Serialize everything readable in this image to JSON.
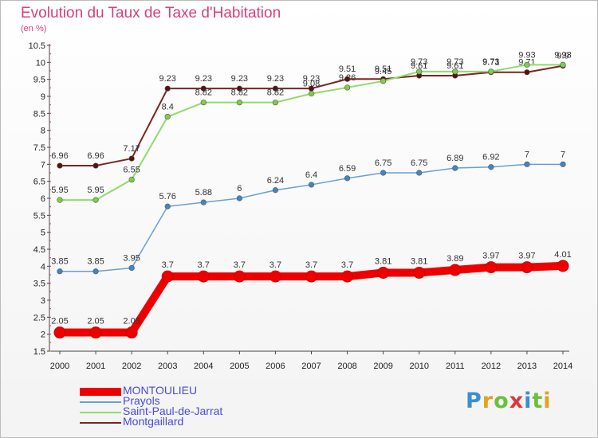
{
  "title": "Evolution du Taux de Taxe d'Habitation",
  "unit": "(en %)",
  "logo": {
    "chars": [
      "P",
      "r",
      "o",
      "x",
      "i",
      "t",
      "i"
    ],
    "colors": [
      "#3a8fd0",
      "#e8a020",
      "#6cbf3a",
      "#d83a3a",
      "#3a8fd0",
      "#6cbf3a",
      "#e8a020"
    ]
  },
  "chart_data": {
    "type": "line",
    "title": "Evolution du Taux de Taxe d'Habitation",
    "ylabel": "(en %)",
    "xlabel": "",
    "x": [
      "2000",
      "2001",
      "2002",
      "2003",
      "2004",
      "2005",
      "2006",
      "2007",
      "2008",
      "2009",
      "2010",
      "2011",
      "2012",
      "2013",
      "2014"
    ],
    "ylim": [
      1.5,
      10.5
    ],
    "yticks": [
      "1.5",
      "2",
      "2.5",
      "3",
      "3.5",
      "4",
      "4.5",
      "5",
      "5.5",
      "6",
      "6.5",
      "7",
      "7.5",
      "8",
      "8.5",
      "9",
      "9.5",
      "10",
      "10.5"
    ],
    "grid": false,
    "legend_position": "bottom-left",
    "series": [
      {
        "name": "Montgaillard",
        "color": "#7a2424",
        "marker": "#5a0e0e",
        "width": 2,
        "values": [
          6.96,
          6.96,
          7.17,
          9.23,
          9.23,
          9.23,
          9.23,
          9.23,
          9.51,
          9.51,
          9.61,
          9.61,
          9.71,
          9.71,
          9.9
        ],
        "labels": [
          "6.96",
          "6.96",
          "7.17",
          "9.23",
          "9.23",
          "9.23",
          "9.23",
          "9.23",
          "9.51",
          "9.51",
          "9.61",
          "9.61",
          "9.71",
          "9.71",
          "9.9"
        ]
      },
      {
        "name": "Saint-Paul-de-Jarrat",
        "color": "#8fdc6b",
        "marker": "#7ccf45",
        "width": 2,
        "values": [
          5.95,
          5.95,
          6.55,
          8.4,
          8.82,
          8.82,
          8.82,
          9.08,
          9.26,
          9.45,
          9.73,
          9.73,
          9.73,
          9.93,
          9.93
        ],
        "labels": [
          "5.95",
          "5.95",
          "6.55",
          "8.4",
          "8.82",
          "8.82",
          "8.82",
          "9.08",
          "9.26",
          "9.45",
          "9.73",
          "9.73",
          "9.73",
          "9.93",
          "9.93"
        ]
      },
      {
        "name": "Prayols",
        "color": "#6a9ed4",
        "marker": "#3f86c8",
        "width": 1.5,
        "values": [
          3.85,
          3.85,
          3.95,
          5.76,
          5.88,
          6,
          6.24,
          6.4,
          6.59,
          6.75,
          6.75,
          6.89,
          6.92,
          7,
          7
        ],
        "labels": [
          "3.85",
          "3.85",
          "3.95",
          "5.76",
          "5.88",
          "6",
          "6.24",
          "6.4",
          "6.59",
          "6.75",
          "6.75",
          "6.89",
          "6.92",
          "7",
          "7"
        ]
      },
      {
        "name": "MONTOULIEU",
        "color": "#ee0000",
        "marker": "#ee0000",
        "width": 10,
        "values": [
          2.05,
          2.05,
          2.05,
          3.7,
          3.7,
          3.7,
          3.7,
          3.7,
          3.7,
          3.81,
          3.81,
          3.89,
          3.97,
          3.97,
          4.01
        ],
        "labels": [
          "2.05",
          "2.05",
          "2.05",
          "3.7",
          "3.7",
          "3.7",
          "3.7",
          "3.7",
          "3.7",
          "3.81",
          "3.81",
          "3.89",
          "3.97",
          "3.97",
          "4.01"
        ]
      }
    ],
    "legend": [
      {
        "name": "MONTOULIEU",
        "color": "#ee0000",
        "thickness": 10
      },
      {
        "name": "Prayols",
        "color": "#6a9ed4",
        "thickness": 2
      },
      {
        "name": "Saint-Paul-de-Jarrat",
        "color": "#8fdc6b",
        "thickness": 2
      },
      {
        "name": "Montgaillard",
        "color": "#7a2424",
        "thickness": 2
      }
    ]
  }
}
